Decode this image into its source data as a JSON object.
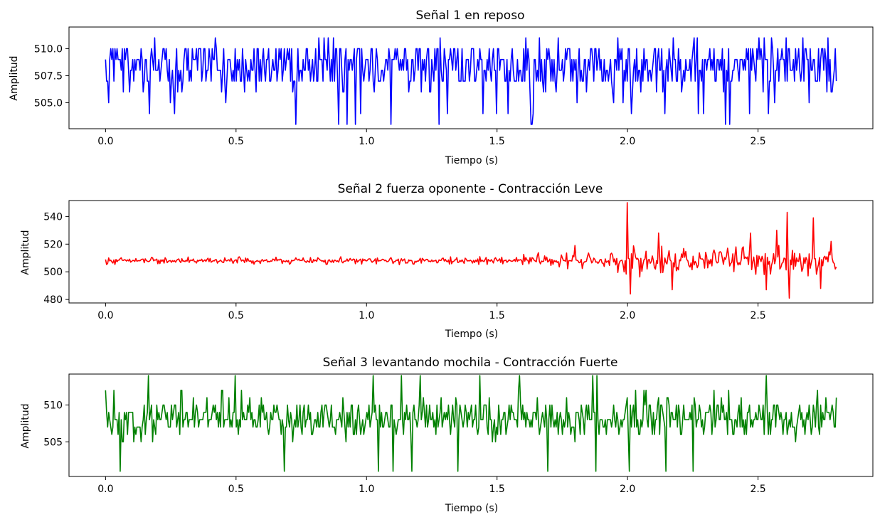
{
  "chart_data": [
    {
      "type": "line",
      "title": "Señal 1 en reposo",
      "xlabel": "Tiempo (s)",
      "ylabel": "Amplitud",
      "xlim": [
        -0.14,
        2.94
      ],
      "ylim": [
        502.6,
        512.0
      ],
      "xticks": [
        0.0,
        0.5,
        1.0,
        1.5,
        2.0,
        2.5
      ],
      "xtick_labels": [
        "0.0",
        "0.5",
        "1.0",
        "1.5",
        "2.0",
        "2.5"
      ],
      "yticks": [
        505.0,
        507.5,
        510.0
      ],
      "ytick_labels": [
        "505.0",
        "507.5",
        "510.0"
      ],
      "grid": false,
      "series": [
        {
          "color": "#0000ff",
          "x_start": 0.0,
          "x_end": 2.8,
          "points": 700,
          "baseline": 508.3,
          "values_sample": [
            509,
            507,
            510,
            508,
            506,
            509,
            510,
            507,
            508,
            511,
            505,
            508,
            510,
            507,
            509,
            508,
            504,
            509,
            510,
            507,
            508,
            509,
            511,
            507,
            508,
            506,
            510,
            509,
            507,
            508,
            509,
            510,
            507,
            508,
            503,
            509,
            510,
            507,
            508,
            509
          ],
          "min": 503,
          "max": 512
        }
      ]
    },
    {
      "type": "line",
      "title": "Señal 2 fuerza oponente - Contracción Leve",
      "xlabel": "Tiempo (s)",
      "ylabel": "Amplitud",
      "xlim": [
        -0.14,
        2.94
      ],
      "ylim": [
        477.5,
        551.5
      ],
      "xticks": [
        0.0,
        0.5,
        1.0,
        1.5,
        2.0,
        2.5
      ],
      "xtick_labels": [
        "0.0",
        "0.5",
        "1.0",
        "1.5",
        "2.0",
        "2.5"
      ],
      "yticks": [
        480,
        500,
        520,
        540
      ],
      "ytick_labels": [
        "480",
        "500",
        "520",
        "540"
      ],
      "grid": false,
      "series": [
        {
          "color": "#ff0000",
          "x_start": 0.0,
          "x_end": 2.8,
          "points": 700,
          "baseline": 508,
          "segments": [
            {
              "x_from": 0.0,
              "x_to": 1.6,
              "amplitude": 3
            },
            {
              "x_from": 1.6,
              "x_to": 1.95,
              "amplitude": 6
            },
            {
              "x_from": 1.95,
              "x_to": 2.8,
              "amplitude": 12
            }
          ],
          "peaks": [
            {
              "x": 1.8,
              "y": 519
            },
            {
              "x": 2.0,
              "y": 550
            },
            {
              "x": 2.01,
              "y": 484
            },
            {
              "x": 2.12,
              "y": 528
            },
            {
              "x": 2.17,
              "y": 487
            },
            {
              "x": 2.47,
              "y": 528
            },
            {
              "x": 2.53,
              "y": 487
            },
            {
              "x": 2.57,
              "y": 530
            },
            {
              "x": 2.61,
              "y": 543
            },
            {
              "x": 2.62,
              "y": 481
            },
            {
              "x": 2.71,
              "y": 539
            },
            {
              "x": 2.74,
              "y": 488
            },
            {
              "x": 2.78,
              "y": 522
            }
          ],
          "min": 481,
          "max": 550
        }
      ]
    },
    {
      "type": "line",
      "title": "Señal 3 levantando mochila - Contracción Fuerte",
      "xlabel": "Tiempo (s)",
      "ylabel": "Amplitud",
      "xlim": [
        -0.14,
        2.94
      ],
      "ylim": [
        500.3,
        514.2
      ],
      "xticks": [
        0.0,
        0.5,
        1.0,
        1.5,
        2.0,
        2.5
      ],
      "xtick_labels": [
        "0.0",
        "0.5",
        "1.0",
        "1.5",
        "2.0",
        "2.5"
      ],
      "yticks": [
        505,
        510
      ],
      "ytick_labels": [
        "505",
        "510"
      ],
      "grid": false,
      "series": [
        {
          "color": "#008000",
          "x_start": 0.0,
          "x_end": 2.8,
          "points": 700,
          "baseline": 508,
          "values_sample": [
            512,
            508,
            509,
            507,
            510,
            508,
            506,
            509,
            511,
            507,
            508,
            510,
            505,
            509,
            508,
            507,
            510,
            508,
            509,
            506,
            511,
            508,
            507,
            509,
            510,
            508,
            501,
            509,
            507,
            508,
            510,
            514,
            508,
            507,
            509,
            508,
            506,
            510,
            508,
            509
          ],
          "min": 501,
          "max": 514
        }
      ]
    }
  ]
}
